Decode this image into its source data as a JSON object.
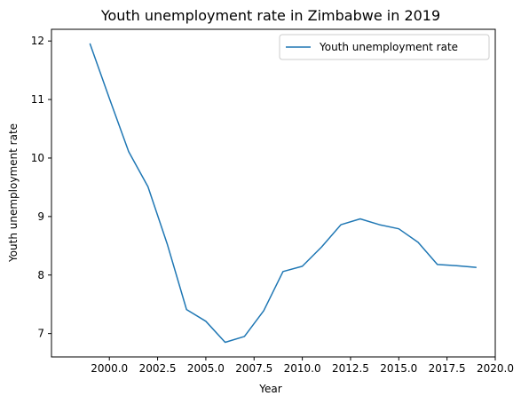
{
  "chart_data": {
    "type": "line",
    "title": "Youth unemployment rate in Zimbabwe in 2019",
    "xlabel": "Year",
    "ylabel": "Youth unemployment rate",
    "xlim": [
      1997.0,
      2020.0
    ],
    "ylim": [
      6.6,
      12.2
    ],
    "x_ticks": [
      2000.0,
      2002.5,
      2005.0,
      2007.5,
      2010.0,
      2012.5,
      2015.0,
      2017.5,
      2020.0
    ],
    "x_tick_labels": [
      "2000.0",
      "2002.5",
      "2005.0",
      "2007.5",
      "2010.0",
      "2012.5",
      "2015.0",
      "2017.5",
      "2020.0"
    ],
    "y_ticks": [
      7,
      8,
      9,
      10,
      11,
      12
    ],
    "y_tick_labels": [
      "7",
      "8",
      "9",
      "10",
      "11",
      "12"
    ],
    "grid": false,
    "legend_position": "top-right",
    "series": [
      {
        "name": "Youth unemployment rate",
        "color": "#1f77b4",
        "x": [
          1999,
          2000,
          2001,
          2002,
          2003,
          2004,
          2005,
          2006,
          2007,
          2008,
          2009,
          2010,
          2011,
          2012,
          2013,
          2014,
          2015,
          2016,
          2017,
          2018,
          2019
        ],
        "y": [
          11.95,
          11.02,
          10.11,
          9.51,
          8.53,
          7.41,
          7.21,
          6.85,
          6.95,
          7.39,
          8.06,
          8.15,
          8.48,
          8.86,
          8.96,
          8.86,
          8.79,
          8.56,
          8.18,
          8.16,
          8.13
        ]
      }
    ]
  }
}
